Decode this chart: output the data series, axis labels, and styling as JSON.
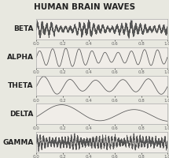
{
  "title": "HUMAN BRAIN WAVES",
  "title_bg": "#F5C200",
  "title_color": "#222222",
  "waves": [
    "BETA",
    "ALPHA",
    "THETA",
    "DELTA",
    "GAMMA"
  ],
  "wave_color": "#555555",
  "bg_color": "#e8e8e0",
  "panel_bg": "#f0ede8",
  "border_color": "#aaaaaa",
  "xticks": [
    0.0,
    0.2,
    0.4,
    0.6,
    0.8,
    1.0
  ],
  "xtick_labels": [
    "0.0",
    "0.2",
    "0.4",
    "0.6",
    "0.8",
    "1.0"
  ],
  "label_fontsize": 6.5,
  "tick_fontsize": 4.0,
  "title_fontsize": 7.5
}
